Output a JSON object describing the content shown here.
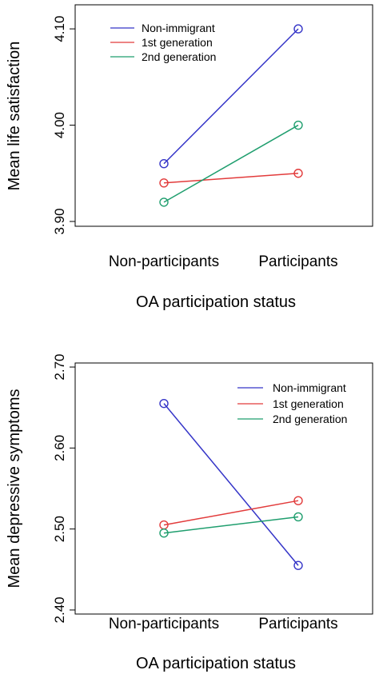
{
  "chart_data": [
    {
      "type": "line",
      "categories": [
        "Non-participants",
        "Participants"
      ],
      "xlabel": "OA participation status",
      "ylabel": "Mean life satisfaction",
      "ylim": [
        3.895,
        4.125
      ],
      "yticks": [
        3.9,
        4.0,
        4.1
      ],
      "ytick_labels": [
        "3.90",
        "4.00",
        "4.10"
      ],
      "legend_position": "top-left",
      "grid": false,
      "series": [
        {
          "name": "Non-immigrant",
          "color": "#3535c8",
          "values": [
            3.96,
            4.1
          ]
        },
        {
          "name": "1st generation",
          "color": "#e23b3b",
          "values": [
            3.94,
            3.95
          ]
        },
        {
          "name": "2nd generation",
          "color": "#1f9e6e",
          "values": [
            3.92,
            4.0
          ]
        }
      ]
    },
    {
      "type": "line",
      "categories": [
        "Non-participants",
        "Participants"
      ],
      "xlabel": "OA participation status",
      "ylabel": "Mean depressive symptoms",
      "ylim": [
        2.395,
        2.705
      ],
      "yticks": [
        2.4,
        2.5,
        2.6,
        2.7
      ],
      "ytick_labels": [
        "2.40",
        "2.50",
        "2.60",
        "2.70"
      ],
      "legend_position": "top-right",
      "grid": false,
      "series": [
        {
          "name": "Non-immigrant",
          "color": "#3535c8",
          "values": [
            2.655,
            2.455
          ]
        },
        {
          "name": "1st generation",
          "color": "#e23b3b",
          "values": [
            2.505,
            2.535
          ]
        },
        {
          "name": "2nd generation",
          "color": "#1f9e6e",
          "values": [
            2.495,
            2.515
          ]
        }
      ]
    }
  ]
}
